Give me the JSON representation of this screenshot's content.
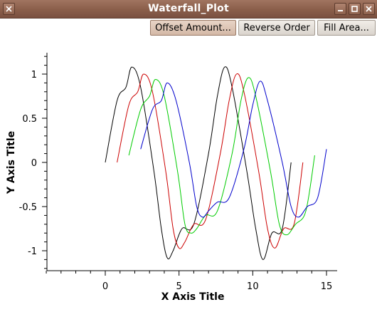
{
  "window": {
    "title": "Waterfall_Plot",
    "controls": [
      "menu-icon",
      "minimize-icon",
      "maximize-icon",
      "close-icon"
    ]
  },
  "toolbar": {
    "offset_label": "Offset Amount...",
    "reverse_label": "Reverse Order",
    "fill_label": "Fill Area..."
  },
  "chart_data": {
    "type": "line",
    "title": "",
    "xlabel": "X Axis Title",
    "ylabel": "Y Axis Title",
    "xlim": [
      -4,
      15.8
    ],
    "ylim": [
      -1.23,
      1.23
    ],
    "xticks": [
      0,
      5,
      10,
      15
    ],
    "yticks": [
      1,
      0.5,
      0,
      -0.5,
      -1
    ],
    "grid": false,
    "legend": "none",
    "series": [
      {
        "color": "#000000",
        "x": [
          0,
          0.8,
          1.4,
          1.8,
          2.4,
          3.3,
          3.8,
          4.2,
          4.6,
          5.2,
          6.0,
          7.0,
          7.6,
          8.1,
          8.6,
          9.6,
          10.2,
          10.7,
          11.3,
          12.0,
          12.6
        ],
        "y": [
          0,
          0.7,
          0.85,
          1.08,
          0.85,
          -0.1,
          -0.75,
          -1.08,
          -1.0,
          -0.75,
          -0.7,
          0.1,
          0.75,
          1.08,
          0.85,
          -0.1,
          -0.75,
          -1.1,
          -0.8,
          -0.75,
          0
        ]
      },
      {
        "color": "#cc0000",
        "x": [
          0.8,
          1.6,
          2.2,
          2.6,
          3.2,
          4.1,
          4.6,
          5.0,
          5.4,
          6.0,
          6.8,
          7.8,
          8.4,
          8.9,
          9.4,
          10.4,
          11.0,
          11.5,
          12.1,
          12.8,
          13.4
        ],
        "y": [
          0,
          0.65,
          0.8,
          1.0,
          0.8,
          -0.1,
          -0.75,
          -0.97,
          -0.9,
          -0.7,
          -0.65,
          0.1,
          0.7,
          1.0,
          0.8,
          -0.1,
          -0.75,
          -0.97,
          -0.75,
          -0.7,
          0
        ]
      },
      {
        "color": "#00cc00",
        "x": [
          1.6,
          2.4,
          3.0,
          3.4,
          4.0,
          4.9,
          5.4,
          5.8,
          6.2,
          6.8,
          7.6,
          8.6,
          9.2,
          9.7,
          10.2,
          11.2,
          11.8,
          12.3,
          12.9,
          13.6,
          14.2
        ],
        "y": [
          0.08,
          0.6,
          0.75,
          0.94,
          0.75,
          -0.1,
          -0.7,
          -0.8,
          -0.75,
          -0.6,
          -0.55,
          0.1,
          0.7,
          0.96,
          0.75,
          -0.1,
          -0.7,
          -0.82,
          -0.7,
          -0.55,
          0.08
        ]
      },
      {
        "color": "#0000cc",
        "x": [
          2.4,
          3.2,
          3.8,
          4.2,
          4.8,
          5.7,
          6.2,
          6.6,
          7.0,
          7.6,
          8.4,
          9.4,
          10.0,
          10.5,
          11.0,
          12.0,
          12.6,
          13.1,
          13.7,
          14.4,
          15.0
        ],
        "y": [
          0.15,
          0.6,
          0.7,
          0.9,
          0.7,
          0,
          -0.5,
          -0.62,
          -0.55,
          -0.45,
          -0.4,
          0.15,
          0.65,
          0.92,
          0.7,
          0,
          -0.5,
          -0.62,
          -0.5,
          -0.4,
          0.15
        ]
      }
    ]
  }
}
